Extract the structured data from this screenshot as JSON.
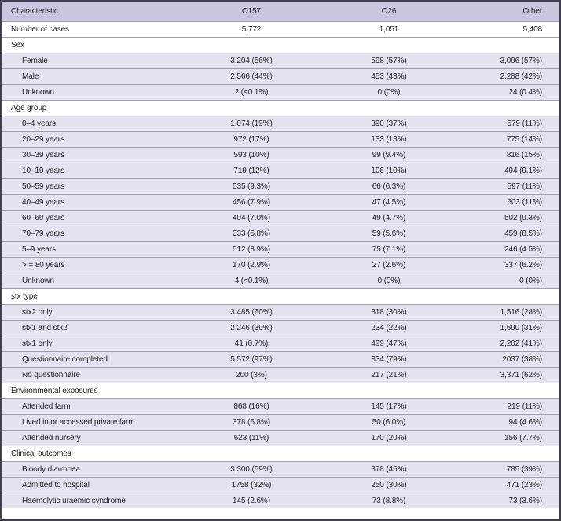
{
  "theme": {
    "header_bg": "#c9c6e0",
    "row_bg": "#e4e2ef",
    "section_bg": "#ffffff",
    "outer_border": "#3e3e4d",
    "line": "#9f9ead",
    "text": "#222222"
  },
  "table": {
    "columns": [
      "Characteristic",
      "O157",
      "O26",
      "Other"
    ],
    "rows": [
      {
        "type": "top",
        "label": "Number of cases",
        "values": [
          "5,772",
          "1,051",
          "5,408"
        ]
      },
      {
        "type": "section",
        "label": "Sex"
      },
      {
        "type": "data",
        "label": "Female",
        "values": [
          "3,204 (56%)",
          "598 (57%)",
          "3,096 (57%)"
        ]
      },
      {
        "type": "data",
        "label": "Male",
        "values": [
          "2,566 (44%)",
          "453 (43%)",
          "2,288 (42%)"
        ]
      },
      {
        "type": "data",
        "label": "Unknown",
        "values": [
          "2 (<0.1%)",
          "0 (0%)",
          "24 (0.4%)"
        ]
      },
      {
        "type": "section",
        "label": "Age group"
      },
      {
        "type": "data",
        "label": "0–4 years",
        "values": [
          "1,074 (19%)",
          "390 (37%)",
          "579 (11%)"
        ]
      },
      {
        "type": "data",
        "label": "20–29 years",
        "values": [
          "972 (17%)",
          "133 (13%)",
          "775 (14%)"
        ]
      },
      {
        "type": "data",
        "label": "30–39 years",
        "values": [
          "593 (10%)",
          "99 (9.4%)",
          "816 (15%)"
        ]
      },
      {
        "type": "data",
        "label": "10–19 years",
        "values": [
          "719 (12%)",
          "106 (10%)",
          "494 (9.1%)"
        ]
      },
      {
        "type": "data",
        "label": "50–59 years",
        "values": [
          "535 (9.3%)",
          "66 (6.3%)",
          "597 (11%)"
        ]
      },
      {
        "type": "data",
        "label": "40–49 years",
        "values": [
          "456 (7.9%)",
          "47 (4.5%)",
          "603 (11%)"
        ]
      },
      {
        "type": "data",
        "label": "60–69 years",
        "values": [
          "404 (7.0%)",
          "49 (4.7%)",
          "502 (9.3%)"
        ]
      },
      {
        "type": "data",
        "label": "70–79 years",
        "values": [
          "333 (5.8%)",
          "59 (5.6%)",
          "459 (8.5%)"
        ]
      },
      {
        "type": "data",
        "label": "5–9 years",
        "values": [
          "512 (8.9%)",
          "75 (7.1%)",
          "246 (4.5%)"
        ]
      },
      {
        "type": "data",
        "label": "> = 80 years",
        "values": [
          "170 (2.9%)",
          "27 (2.6%)",
          "337 (6.2%)"
        ]
      },
      {
        "type": "data",
        "label": "Unknown",
        "values": [
          "4 (<0.1%)",
          "0 (0%)",
          "0 (0%)"
        ]
      },
      {
        "type": "section",
        "label": "stx type"
      },
      {
        "type": "data",
        "label": "stx2 only",
        "values": [
          "3,485 (60%)",
          "318 (30%)",
          "1,516 (28%)"
        ]
      },
      {
        "type": "data",
        "label": "stx1 and stx2",
        "values": [
          "2,246 (39%)",
          "234 (22%)",
          "1,690 (31%)"
        ]
      },
      {
        "type": "data",
        "label": "stx1 only",
        "values": [
          "41 (0.7%)",
          "499 (47%)",
          "2,202 (41%)"
        ]
      },
      {
        "type": "data",
        "label": "Questionnaire completed",
        "values": [
          "5,572 (97%)",
          "834 (79%)",
          "2037 (38%)"
        ]
      },
      {
        "type": "data",
        "label": "No questionnaire",
        "values": [
          "200 (3%)",
          "217 (21%)",
          "3,371 (62%)"
        ]
      },
      {
        "type": "section",
        "label": "Environmental exposures"
      },
      {
        "type": "data",
        "label": "Attended farm",
        "values": [
          "868 (16%)",
          "145 (17%)",
          "219 (11%)"
        ]
      },
      {
        "type": "data",
        "label": "Lived in or accessed private farm",
        "values": [
          "378 (6.8%)",
          "50 (6.0%)",
          "94 (4.6%)"
        ]
      },
      {
        "type": "data",
        "label": "Attended nursery",
        "values": [
          "623 (11%)",
          "170 (20%)",
          "156 (7.7%)"
        ]
      },
      {
        "type": "section",
        "label": "Clinical outcomes"
      },
      {
        "type": "data",
        "label": "Bloody diarrhoea",
        "values": [
          "3,300 (59%)",
          "378 (45%)",
          "785 (39%)"
        ]
      },
      {
        "type": "data",
        "label": "Admitted to hospital",
        "values": [
          "1758 (32%)",
          "250 (30%)",
          "471 (23%)"
        ]
      },
      {
        "type": "data",
        "label": "Haemolytic uraemic syndrome",
        "values": [
          "145 (2.6%)",
          "73 (8.8%)",
          "73 (3.6%)"
        ]
      }
    ]
  }
}
